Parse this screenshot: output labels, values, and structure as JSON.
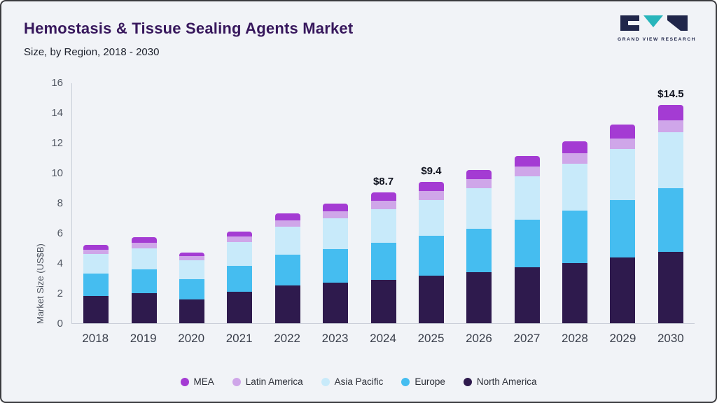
{
  "header": {
    "title": "Hemostasis & Tissue Sealing Agents Market",
    "subtitle": "Size, by Region, 2018 - 2030"
  },
  "logo": {
    "text": "GRAND VIEW RESEARCH",
    "navy": "#20264a",
    "teal": "#28b5bb"
  },
  "chart_data": {
    "type": "bar",
    "stacked": true,
    "title": "Hemostasis & Tissue Sealing Agents Market Size, by Region, 2018 - 2030",
    "ylabel": "Market Size (US$B)",
    "ylim": [
      0,
      16
    ],
    "yticks": [
      0,
      2,
      4,
      6,
      8,
      10,
      12,
      14,
      16
    ],
    "grid": false,
    "legend_position": "bottom",
    "categories": [
      "2018",
      "2019",
      "2020",
      "2021",
      "2022",
      "2023",
      "2024",
      "2025",
      "2026",
      "2027",
      "2028",
      "2029",
      "2030"
    ],
    "series": [
      {
        "name": "North America",
        "color": "#2e1a4d",
        "values": [
          1.8,
          2.0,
          1.6,
          2.1,
          2.5,
          2.7,
          2.9,
          3.15,
          3.4,
          3.7,
          4.0,
          4.35,
          4.75
        ]
      },
      {
        "name": "Europe",
        "color": "#45bdf0",
        "values": [
          1.5,
          1.6,
          1.35,
          1.7,
          2.05,
          2.25,
          2.45,
          2.65,
          2.9,
          3.2,
          3.5,
          3.85,
          4.25
        ]
      },
      {
        "name": "Asia Pacific",
        "color": "#c8eafa",
        "values": [
          1.3,
          1.4,
          1.25,
          1.6,
          1.85,
          2.05,
          2.25,
          2.4,
          2.7,
          2.85,
          3.1,
          3.4,
          3.7
        ]
      },
      {
        "name": "Latin America",
        "color": "#cfa6e9",
        "values": [
          0.3,
          0.35,
          0.25,
          0.35,
          0.45,
          0.45,
          0.55,
          0.6,
          0.6,
          0.65,
          0.7,
          0.7,
          0.8
        ]
      },
      {
        "name": "MEA",
        "color": "#a43bd3",
        "values": [
          0.3,
          0.35,
          0.25,
          0.35,
          0.45,
          0.5,
          0.55,
          0.6,
          0.6,
          0.7,
          0.8,
          0.9,
          1.0
        ]
      }
    ],
    "total_labels": {
      "2024": "$8.7",
      "2025": "$9.4",
      "2030": "$14.5"
    },
    "legend": [
      "MEA",
      "Latin America",
      "Asia Pacific",
      "Europe",
      "North America"
    ]
  }
}
